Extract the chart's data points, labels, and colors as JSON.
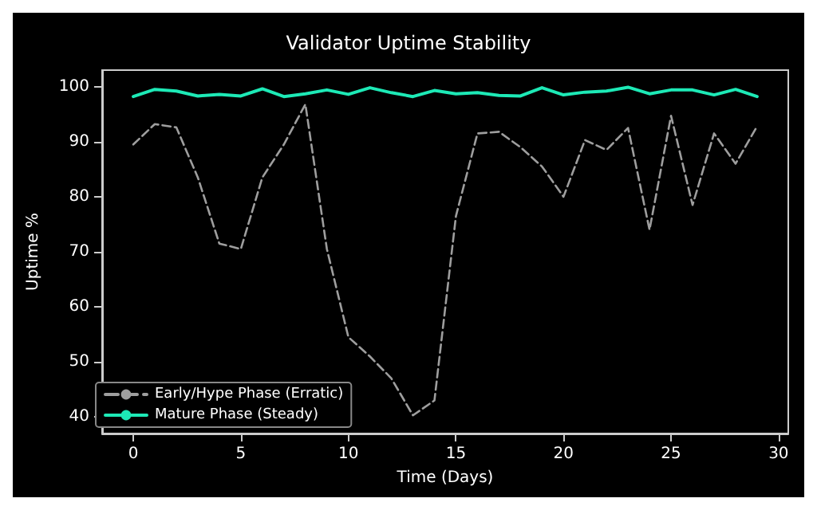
{
  "chart_data": {
    "type": "line",
    "title": "Validator Uptime Stability",
    "xlabel": "Time (Days)",
    "ylabel": "Uptime %",
    "x": [
      0,
      1,
      2,
      3,
      4,
      5,
      6,
      7,
      8,
      9,
      10,
      11,
      12,
      13,
      14,
      15,
      16,
      17,
      18,
      19,
      20,
      21,
      22,
      23,
      24,
      25,
      26,
      27,
      28,
      29
    ],
    "series": [
      {
        "name": "Early/Hype Phase (Erratic)",
        "color": "#9e9e9e",
        "line_style": "dashed",
        "values": [
          89.5,
          93.2,
          92.6,
          83.5,
          71.5,
          70.5,
          83.5,
          89.5,
          96.8,
          70.5,
          54.5,
          51,
          47,
          40.3,
          43,
          76.5,
          91.5,
          91.8,
          89,
          85.5,
          80,
          90.3,
          88.5,
          92.5,
          74,
          94.7,
          78.5,
          91.5,
          86,
          92.8
        ]
      },
      {
        "name": "Mature Phase (Steady)",
        "color": "#1de9b6",
        "line_style": "solid",
        "values": [
          98.2,
          99.5,
          99.2,
          98.3,
          98.6,
          98.3,
          99.6,
          98.2,
          98.7,
          99.4,
          98.6,
          99.8,
          98.9,
          98.2,
          99.3,
          98.7,
          98.9,
          98.4,
          98.3,
          99.8,
          98.5,
          99.0,
          99.2,
          99.9,
          98.7,
          99.4,
          99.4,
          98.5,
          99.5,
          98.2
        ]
      }
    ],
    "xlim": [
      -1.45,
      30.45
    ],
    "xticks": [
      0,
      5,
      10,
      15,
      20,
      25,
      30
    ],
    "ylim": [
      37,
      103
    ],
    "yticks": [
      40,
      50,
      60,
      70,
      80,
      90,
      100
    ],
    "grid": false,
    "legend": "bottom left",
    "marker": "none"
  }
}
